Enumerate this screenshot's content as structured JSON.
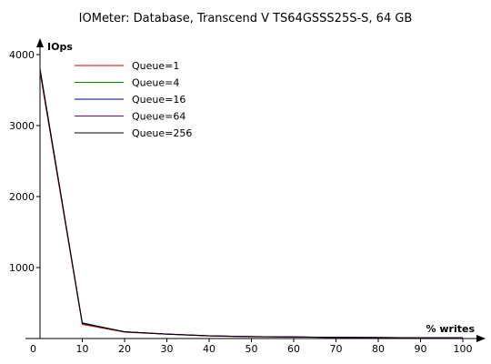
{
  "chart_data": {
    "type": "line",
    "title": "IOMeter: Database, Transcend V TS64GSSS25S-S, 64 GB",
    "xlabel": "% writes",
    "ylabel": "IOps",
    "x": [
      0,
      10,
      20,
      30,
      40,
      50,
      60,
      70,
      80,
      90,
      100
    ],
    "xlim": [
      0,
      100
    ],
    "ylim": [
      0,
      4000
    ],
    "xticks": [
      "0",
      "10",
      "20",
      "30",
      "40",
      "50",
      "60",
      "70",
      "80",
      "90",
      "100"
    ],
    "yticks": [
      "0",
      "1000",
      "2000",
      "3000",
      "4000"
    ],
    "grid": false,
    "legend_position": "top-left",
    "series": [
      {
        "name": "Queue=1",
        "color": "#cc0000",
        "values": [
          3750,
          200,
          90,
          60,
          35,
          25,
          20,
          15,
          12,
          10,
          8
        ]
      },
      {
        "name": "Queue=4",
        "color": "#008000",
        "values": [
          3780,
          210,
          95,
          62,
          37,
          26,
          21,
          16,
          13,
          11,
          9
        ]
      },
      {
        "name": "Queue=16",
        "color": "#000099",
        "values": [
          3790,
          220,
          95,
          63,
          38,
          27,
          22,
          17,
          14,
          12,
          10
        ]
      },
      {
        "name": "Queue=64",
        "color": "#800080",
        "values": [
          3800,
          215,
          96,
          64,
          38,
          27,
          22,
          17,
          14,
          12,
          10
        ]
      },
      {
        "name": "Queue=256",
        "color": "#000000",
        "values": [
          3800,
          215,
          95,
          63,
          38,
          27,
          22,
          17,
          14,
          12,
          10
        ]
      }
    ]
  }
}
